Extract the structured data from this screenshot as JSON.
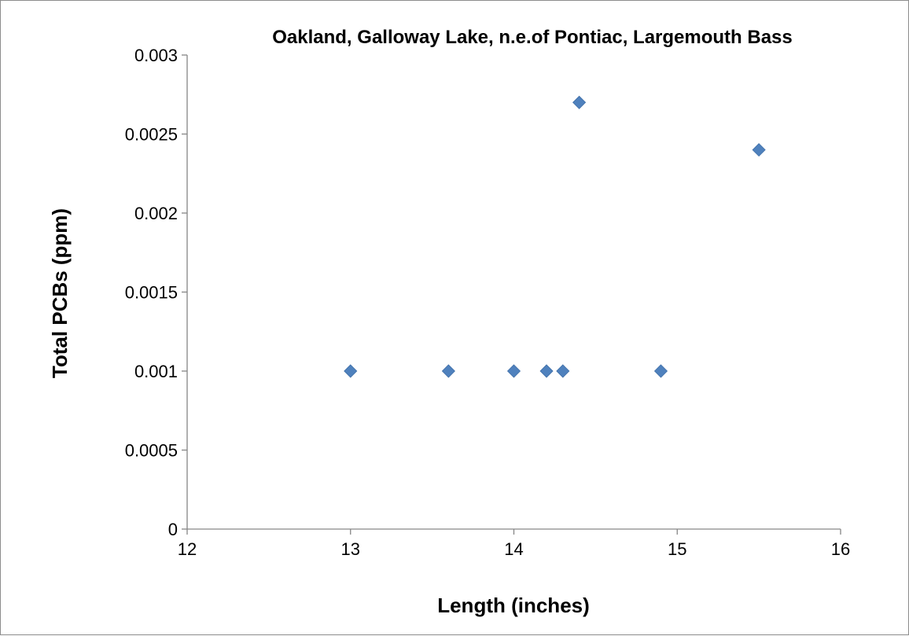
{
  "chart_data": {
    "type": "scatter",
    "title": "Oakland, Galloway Lake, n.e.of Pontiac, Largemouth Bass",
    "xlabel": "Length (inches)",
    "ylabel": "Total PCBs (ppm)",
    "xlim": [
      12,
      16
    ],
    "ylim": [
      0,
      0.003
    ],
    "x_ticks": [
      "12",
      "13",
      "14",
      "15",
      "16"
    ],
    "y_ticks": [
      "0",
      "0.0005",
      "0.001",
      "0.0015",
      "0.002",
      "0.0025",
      "0.003"
    ],
    "x_tick_values": [
      12,
      13,
      14,
      15,
      16
    ],
    "y_tick_values": [
      0,
      0.0005,
      0.001,
      0.0015,
      0.002,
      0.0025,
      0.003
    ],
    "grid": false,
    "legend": "none",
    "marker": "diamond",
    "marker_color": "#4f81bd",
    "series": [
      {
        "x": [
          13.0,
          13.6,
          14.0,
          14.2,
          14.3,
          14.4,
          14.9,
          15.5
        ],
        "y": [
          0.001,
          0.001,
          0.001,
          0.001,
          0.001,
          0.0027,
          0.001,
          0.0024
        ]
      }
    ]
  }
}
